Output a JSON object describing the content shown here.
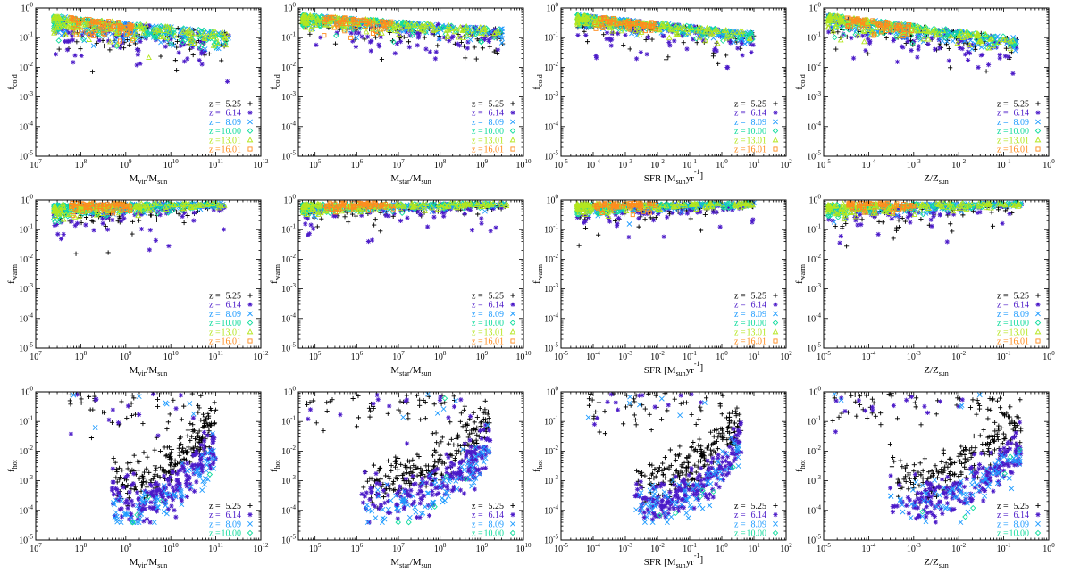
{
  "colors": {
    "5.25": "#000000",
    "6.14": "#4b1ac8",
    "8.09": "#1e9bff",
    "10.00": "#12dc9e",
    "13.01": "#b4e61e",
    "16.01": "#ff8c1e"
  },
  "markers": {
    "5.25": "plus",
    "6.14": "asterisk",
    "8.09": "cross",
    "10.00": "diamond",
    "13.01": "triangle",
    "16.01": "square"
  },
  "chart_data": [
    {
      "id": "cold-mvir",
      "type": "scatter",
      "ylabel": "f",
      "ysub": "cold",
      "xlabel": "M",
      "xsub": "vir",
      "xtail": "/M",
      "xsub2": "sun",
      "xlim_exp": [
        7,
        12
      ],
      "ylim_exp": [
        -5,
        0
      ],
      "xticks": [
        "10^7",
        "10^8",
        "10^9",
        "10^10",
        "10^11",
        "10^12"
      ],
      "legend": [
        "5.25",
        "6.14",
        "8.09",
        "10.00",
        "13.01",
        "16.01"
      ],
      "spread": {
        "x0": 7.4,
        "x1": 11.3,
        "peak": 0.55,
        "low": 0.15,
        "scat": 0.55,
        "dip": 1.6
      },
      "series": [
        {
          "name": "z = 5.25",
          "values": "scatter cloud"
        }
      ]
    },
    {
      "id": "cold-mstar",
      "type": "scatter",
      "ylabel": "f",
      "ysub": "cold",
      "xlabel": "M",
      "xsub": "star",
      "xtail": "/M",
      "xsub2": "sun",
      "xlim_exp": [
        4.6,
        10
      ],
      "ylim_exp": [
        -5,
        0
      ],
      "xticks": [
        "10^5",
        "10^6",
        "10^7",
        "10^8",
        "10^9",
        "10^10"
      ],
      "legend": [
        "5.25",
        "6.14",
        "8.09",
        "10.00",
        "13.01",
        "16.01"
      ],
      "spread": {
        "x0": 4.7,
        "x1": 9.5,
        "peak": 0.6,
        "low": 0.2,
        "scat": 0.4,
        "dip": 1.0
      }
    },
    {
      "id": "cold-sfr",
      "type": "scatter",
      "ylabel": "f",
      "ysub": "cold",
      "xlabel": "SFR [M",
      "xsub": "sun",
      "xtail": "yr",
      "xsup": "-1",
      "xlim_exp": [
        -5,
        2
      ],
      "ylim_exp": [
        -5,
        0
      ],
      "xticks": [
        "10^-5",
        "10^-4",
        "10^-3",
        "10^-2",
        "10^-1",
        "10^0",
        "10^1",
        "10^2"
      ],
      "legend": [
        "5.25",
        "6.14",
        "8.09",
        "10.00",
        "13.01",
        "16.01"
      ],
      "spread": {
        "x0": -4.5,
        "x1": 1.0,
        "peak": 0.6,
        "low": 0.15,
        "scat": 0.35,
        "dip": 1.0
      }
    },
    {
      "id": "cold-z",
      "type": "scatter",
      "ylabel": "f",
      "ysub": "cold",
      "xlabel": "Z/Z",
      "xsub": "sun",
      "xtail": "",
      "xlim_exp": [
        -5,
        0
      ],
      "ylim_exp": [
        -5,
        0
      ],
      "xticks": [
        "10^-5",
        "10^-4",
        "10^-3",
        "10^-2",
        "10^-1",
        "10^0"
      ],
      "legend": [
        "5.25",
        "6.14",
        "8.09",
        "10.00",
        "13.01",
        "16.01"
      ],
      "spread": {
        "x0": -4.9,
        "x1": -0.7,
        "peak": 0.6,
        "low": 0.1,
        "scat": 0.45,
        "dip": 1.3
      }
    },
    {
      "id": "warm-mvir",
      "type": "scatter",
      "ylabel": "f",
      "ysub": "warm",
      "xlabel": "M",
      "xsub": "vir",
      "xtail": "/M",
      "xsub2": "sun",
      "xlim_exp": [
        7,
        12
      ],
      "ylim_exp": [
        -5,
        0
      ],
      "xticks": [
        "10^7",
        "10^8",
        "10^9",
        "10^10",
        "10^11",
        "10^12"
      ],
      "legend": [
        "5.25",
        "6.14",
        "8.09",
        "10.00",
        "13.01",
        "16.01"
      ],
      "spread": {
        "x0": 7.4,
        "x1": 11.2,
        "peak": 0.9,
        "low": 0.35,
        "scat": 0.45,
        "dip": 1.4
      }
    },
    {
      "id": "warm-mstar",
      "type": "scatter",
      "ylabel": "f",
      "ysub": "warm",
      "xlabel": "M",
      "xsub": "star",
      "xtail": "/M",
      "xsub2": "sun",
      "xlim_exp": [
        4.6,
        10
      ],
      "ylim_exp": [
        -5,
        0
      ],
      "xticks": [
        "10^5",
        "10^6",
        "10^7",
        "10^8",
        "10^9",
        "10^10"
      ],
      "legend": [
        "5.25",
        "6.14",
        "8.09",
        "10.00",
        "13.01",
        "16.01"
      ],
      "spread": {
        "x0": 4.7,
        "x1": 9.6,
        "peak": 0.9,
        "low": 0.4,
        "scat": 0.35,
        "dip": 0.9
      }
    },
    {
      "id": "warm-sfr",
      "type": "scatter",
      "ylabel": "f",
      "ysub": "warm",
      "xlabel": "SFR [M",
      "xsub": "sun",
      "xtail": "yr",
      "xsup": "-1",
      "xlim_exp": [
        -5,
        2
      ],
      "ylim_exp": [
        -5,
        0
      ],
      "xticks": [
        "10^-5",
        "10^-4",
        "10^-3",
        "10^-2",
        "10^-1",
        "10^0",
        "10^1",
        "10^2"
      ],
      "legend": [
        "5.25",
        "6.14",
        "8.09",
        "10.00",
        "13.01",
        "16.01"
      ],
      "spread": {
        "x0": -4.5,
        "x1": 1.0,
        "peak": 0.9,
        "low": 0.4,
        "scat": 0.35,
        "dip": 1.0
      }
    },
    {
      "id": "warm-z",
      "type": "scatter",
      "ylabel": "f",
      "ysub": "warm",
      "xlabel": "Z/Z",
      "xsub": "sun",
      "xtail": "",
      "xlim_exp": [
        -5,
        0
      ],
      "ylim_exp": [
        -5,
        0
      ],
      "xticks": [
        "10^-5",
        "10^-4",
        "10^-3",
        "10^-2",
        "10^-1",
        "10^0"
      ],
      "legend": [
        "5.25",
        "6.14",
        "8.09",
        "10.00",
        "13.01",
        "16.01"
      ],
      "spread": {
        "x0": -4.9,
        "x1": -0.6,
        "peak": 0.9,
        "low": 0.3,
        "scat": 0.4,
        "dip": 1.2
      }
    },
    {
      "id": "hot-mvir",
      "type": "scatter",
      "ylabel": "f",
      "ysub": "hot",
      "xlabel": "M",
      "xsub": "vir",
      "xtail": "/M",
      "xsub2": "sun",
      "xlim_exp": [
        7,
        12
      ],
      "ylim_exp": [
        -5,
        0
      ],
      "xticks": [
        "10^7",
        "10^8",
        "10^9",
        "10^10",
        "10^11",
        "10^12"
      ],
      "legend": [
        "5.25",
        "6.14",
        "8.09",
        "10.00"
      ],
      "hot": true,
      "spread": {
        "x0": 7.7,
        "x1": 11.0
      }
    },
    {
      "id": "hot-mstar",
      "type": "scatter",
      "ylabel": "f",
      "ysub": "hot",
      "xlabel": "M",
      "xsub": "star",
      "xtail": "/M",
      "xsub2": "sun",
      "xlim_exp": [
        4.6,
        10
      ],
      "ylim_exp": [
        -5,
        0
      ],
      "xticks": [
        "10^5",
        "10^6",
        "10^7",
        "10^8",
        "10^9",
        "10^10"
      ],
      "legend": [
        "5.25",
        "6.14",
        "8.09",
        "10.00"
      ],
      "hot": true,
      "spread": {
        "x0": 4.8,
        "x1": 9.2
      }
    },
    {
      "id": "hot-sfr",
      "type": "scatter",
      "ylabel": "f",
      "ysub": "hot",
      "xlabel": "SFR [M",
      "xsub": "sun",
      "xtail": "yr",
      "xsup": "-1",
      "xlim_exp": [
        -5,
        2
      ],
      "ylim_exp": [
        -5,
        0
      ],
      "xticks": [
        "10^-5",
        "10^-4",
        "10^-3",
        "10^-2",
        "10^-1",
        "10^0",
        "10^1",
        "10^2"
      ],
      "legend": [
        "5.25",
        "6.14",
        "8.09",
        "10.00"
      ],
      "hot": true,
      "spread": {
        "x0": -4.2,
        "x1": 0.6
      }
    },
    {
      "id": "hot-z",
      "type": "scatter",
      "ylabel": "f",
      "ysub": "hot",
      "xlabel": "Z/Z",
      "xsub": "sun",
      "xtail": "",
      "xlim_exp": [
        -5,
        0
      ],
      "ylim_exp": [
        -5,
        0
      ],
      "xticks": [
        "10^-5",
        "10^-4",
        "10^-3",
        "10^-2",
        "10^-1",
        "10^0"
      ],
      "legend": [
        "5.25",
        "6.14",
        "8.09",
        "10.00"
      ],
      "hot": true,
      "spread": {
        "x0": -4.8,
        "x1": -0.6
      }
    }
  ],
  "yticks": [
    "10^-5",
    "10^-4",
    "10^-3",
    "10^-2",
    "10^-1",
    "10^0"
  ],
  "legend_prefix": "z ="
}
